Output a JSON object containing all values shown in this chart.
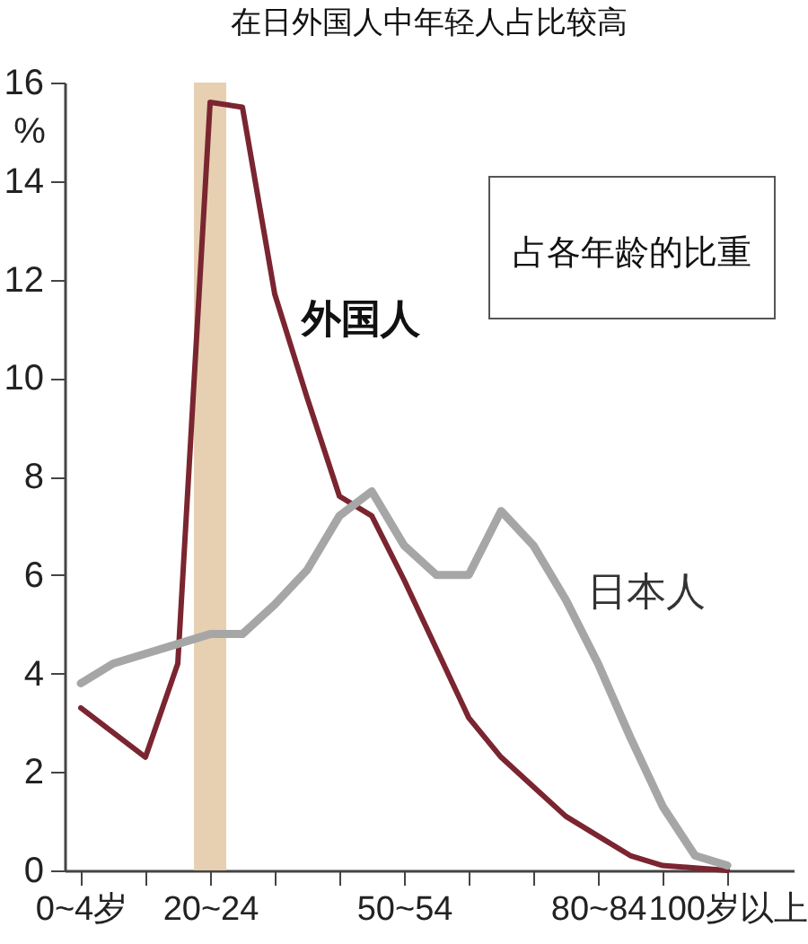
{
  "chart_data": {
    "type": "line",
    "title": "在日外国人中年轻人占比较高",
    "ylabel": "%",
    "categories": [
      "0~4岁",
      null,
      null,
      null,
      "20~24",
      null,
      null,
      null,
      null,
      null,
      "50~54",
      null,
      null,
      null,
      null,
      null,
      "80~84",
      null,
      null,
      null,
      "100岁以上"
    ],
    "series": [
      {
        "name": "外国人",
        "color": "#7a2530",
        "values": [
          3.3,
          2.8,
          2.3,
          4.2,
          15.6,
          15.5,
          11.7,
          9.6,
          7.6,
          7.2,
          5.9,
          4.5,
          3.1,
          2.3,
          1.7,
          1.1,
          0.7,
          0.3,
          0.1,
          0.05,
          0
        ]
      },
      {
        "name": "日本人",
        "color": "#a6a6a6",
        "values": [
          3.8,
          4.2,
          4.4,
          4.6,
          4.8,
          4.8,
          5.4,
          6.1,
          7.2,
          7.7,
          6.6,
          6.0,
          6.0,
          7.3,
          6.6,
          5.5,
          4.2,
          2.7,
          1.3,
          0.3,
          0.1
        ]
      }
    ],
    "ylim": [
      0,
      16
    ],
    "yticks": [
      0,
      2,
      4,
      6,
      8,
      10,
      12,
      14,
      16
    ],
    "bands": [
      {
        "axis": "x",
        "from": "20~24",
        "to": "20~24",
        "color": "#e3cba8"
      }
    ],
    "annotations": [
      "占各年龄的比重"
    ],
    "grid": false,
    "marker": "none",
    "line_style": "solid"
  }
}
